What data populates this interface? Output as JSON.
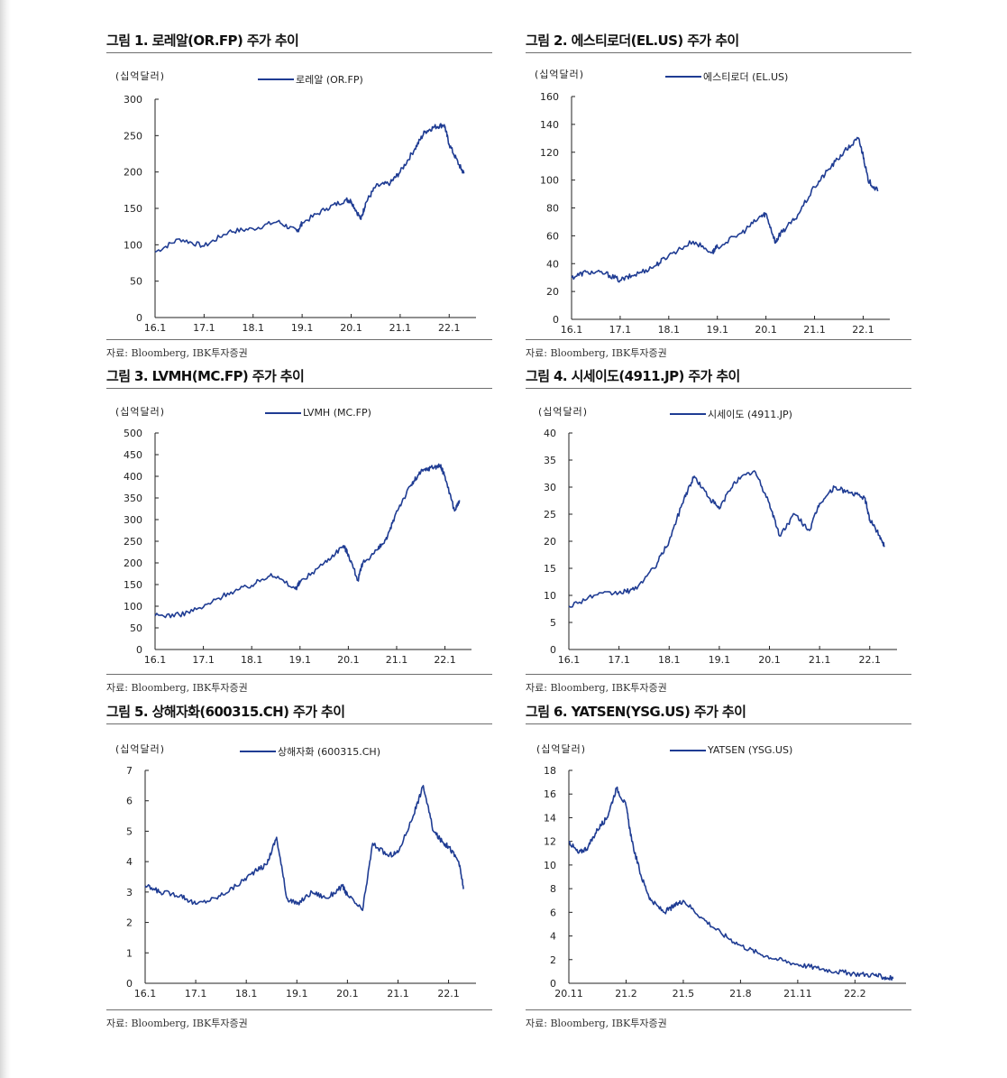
{
  "source": "자료: Bloomberg, IBK투자증권",
  "chart_data": [
    {
      "type": "line",
      "title": "그림 1. 로레알(OR.FP) 주가 추이",
      "unit": "(십억달러)",
      "series": [
        {
          "name": "로레알 (OR.FP)",
          "color": "#1f3c93"
        }
      ],
      "x": [
        2016.0,
        2016.5,
        2017.0,
        2017.5,
        2018.0,
        2018.5,
        2018.9,
        2019.0,
        2019.5,
        2019.9,
        2020.0,
        2020.2,
        2020.3,
        2020.5,
        2020.8,
        2021.0,
        2021.3,
        2021.5,
        2021.7,
        2021.9,
        2022.0,
        2022.2,
        2022.3
      ],
      "values": [
        90,
        108,
        98,
        118,
        122,
        132,
        118,
        130,
        150,
        162,
        160,
        135,
        158,
        180,
        185,
        200,
        232,
        255,
        262,
        265,
        238,
        210,
        198
      ],
      "xticks": [
        "16.1",
        "17.1",
        "18.1",
        "19.1",
        "20.1",
        "21.1",
        "22.1"
      ],
      "xtick_values": [
        2016.0,
        2017.0,
        2018.0,
        2019.0,
        2020.0,
        2021.0,
        2022.0
      ],
      "xlim": [
        2016.0,
        2022.4
      ],
      "yticks": [
        "0",
        "50",
        "100",
        "150",
        "200",
        "250",
        "300"
      ],
      "ylim": [
        0,
        300
      ]
    },
    {
      "type": "line",
      "title": "그림 2. 에스티로더(EL.US) 주가 추이",
      "unit": "(십억달러)",
      "series": [
        {
          "name": "에스티로더 (EL.US)",
          "color": "#1f3c93"
        }
      ],
      "x": [
        2016.0,
        2016.3,
        2016.7,
        2017.0,
        2017.3,
        2017.7,
        2018.0,
        2018.5,
        2018.9,
        2019.0,
        2019.5,
        2019.9,
        2020.0,
        2020.2,
        2020.3,
        2020.6,
        2021.0,
        2021.3,
        2021.6,
        2021.9,
        2022.0,
        2022.1,
        2022.3
      ],
      "values": [
        30,
        34,
        33,
        28,
        32,
        38,
        46,
        56,
        48,
        52,
        62,
        74,
        76,
        55,
        62,
        72,
        95,
        108,
        120,
        130,
        118,
        100,
        92
      ],
      "xticks": [
        "16.1",
        "17.1",
        "18.1",
        "19.1",
        "20.1",
        "21.1",
        "22.1"
      ],
      "xtick_values": [
        2016.0,
        2017.0,
        2018.0,
        2019.0,
        2020.0,
        2021.0,
        2022.0
      ],
      "xlim": [
        2016.0,
        2022.4
      ],
      "yticks": [
        "0",
        "20",
        "40",
        "60",
        "80",
        "100",
        "120",
        "140",
        "160"
      ],
      "ylim": [
        0,
        160
      ]
    },
    {
      "type": "line",
      "title": "그림 3. LVMH(MC.FP) 주가 추이",
      "unit": "(십억달러)",
      "series": [
        {
          "name": "LVMH (MC.FP)",
          "color": "#1f3c93"
        }
      ],
      "x": [
        2016.0,
        2016.5,
        2017.0,
        2017.5,
        2018.0,
        2018.4,
        2018.9,
        2019.0,
        2019.5,
        2019.9,
        2020.0,
        2020.2,
        2020.3,
        2020.6,
        2020.8,
        2021.0,
        2021.3,
        2021.5,
        2021.7,
        2021.9,
        2022.0,
        2022.2,
        2022.3
      ],
      "values": [
        78,
        80,
        98,
        130,
        148,
        175,
        140,
        155,
        200,
        240,
        220,
        160,
        200,
        230,
        255,
        320,
        380,
        410,
        420,
        425,
        400,
        320,
        345
      ],
      "xticks": [
        "16.1",
        "17.1",
        "18.1",
        "19.1",
        "20.1",
        "21.1",
        "22.1"
      ],
      "xtick_values": [
        2016.0,
        2017.0,
        2018.0,
        2019.0,
        2020.0,
        2021.0,
        2022.0
      ],
      "xlim": [
        2016.0,
        2022.4
      ],
      "yticks": [
        "0",
        "50",
        "100",
        "150",
        "200",
        "250",
        "300",
        "350",
        "400",
        "450",
        "500"
      ],
      "ylim": [
        0,
        500
      ]
    },
    {
      "type": "line",
      "title": "그림 4. 시세이도(4911.JP) 주가 추이",
      "unit": "(십억달러)",
      "series": [
        {
          "name": "시세이도 (4911.JP)",
          "color": "#1f3c93"
        }
      ],
      "x": [
        2016.0,
        2016.5,
        2017.0,
        2017.3,
        2017.7,
        2018.0,
        2018.3,
        2018.5,
        2018.8,
        2019.0,
        2019.3,
        2019.7,
        2020.0,
        2020.2,
        2020.5,
        2020.8,
        2021.0,
        2021.3,
        2021.6,
        2021.9,
        2022.0,
        2022.2,
        2022.3
      ],
      "values": [
        8,
        10,
        10.5,
        11,
        15,
        20,
        28,
        32,
        28,
        26,
        31,
        33,
        27,
        21,
        25,
        22,
        27,
        30,
        29,
        28,
        24,
        21,
        19
      ],
      "xticks": [
        "16.1",
        "17.1",
        "18.1",
        "19.1",
        "20.1",
        "21.1",
        "22.1"
      ],
      "xtick_values": [
        2016.0,
        2017.0,
        2018.0,
        2019.0,
        2020.0,
        2021.0,
        2022.0
      ],
      "xlim": [
        2016.0,
        2022.4
      ],
      "yticks": [
        "0",
        "5",
        "10",
        "15",
        "20",
        "25",
        "30",
        "35",
        "40"
      ],
      "ylim": [
        0,
        40
      ]
    },
    {
      "type": "line",
      "title": "그림 5. 상해자화(600315.CH) 주가 추이",
      "unit": "(십억달러)",
      "series": [
        {
          "name": "상해자화 (600315.CH)",
          "color": "#1f3c93"
        }
      ],
      "x": [
        2016.0,
        2016.3,
        2016.7,
        2017.0,
        2017.4,
        2017.8,
        2018.1,
        2018.4,
        2018.6,
        2018.8,
        2019.0,
        2019.3,
        2019.6,
        2019.9,
        2020.0,
        2020.3,
        2020.5,
        2020.8,
        2021.0,
        2021.3,
        2021.5,
        2021.7,
        2021.9,
        2022.0,
        2022.2,
        2022.3
      ],
      "values": [
        3.2,
        3.0,
        2.9,
        2.6,
        2.8,
        3.2,
        3.6,
        3.9,
        4.8,
        2.8,
        2.6,
        3.0,
        2.8,
        3.2,
        2.9,
        2.4,
        4.6,
        4.2,
        4.3,
        5.5,
        6.5,
        5.0,
        4.6,
        4.5,
        4.0,
        3.1
      ],
      "xticks": [
        "16.1",
        "17.1",
        "18.1",
        "19.1",
        "20.1",
        "21.1",
        "22.1"
      ],
      "xtick_values": [
        2016.0,
        2017.0,
        2018.0,
        2019.0,
        2020.0,
        2021.0,
        2022.0
      ],
      "xlim": [
        2016.0,
        2022.4
      ],
      "yticks": [
        "0",
        "1",
        "2",
        "3",
        "4",
        "5",
        "6",
        "7"
      ],
      "ylim": [
        0,
        7
      ]
    },
    {
      "type": "line",
      "title": "그림 6. YATSEN(YSG.US) 주가 추이",
      "unit": "(십억달러)",
      "series": [
        {
          "name": "YATSEN (YSG.US)",
          "color": "#1f3c93"
        }
      ],
      "x": [
        0,
        0.5,
        1,
        1.5,
        2,
        2.5,
        3,
        3.3,
        3.8,
        4.3,
        5,
        5.5,
        6,
        7,
        8,
        9,
        10,
        11,
        12,
        13,
        14,
        15,
        16,
        16.5,
        17
      ],
      "values": [
        12,
        11,
        11.5,
        13,
        14,
        16.5,
        15,
        12,
        9,
        7,
        6,
        6.5,
        7,
        5.5,
        4.2,
        3.2,
        2.5,
        2.0,
        1.6,
        1.3,
        1.0,
        0.8,
        0.7,
        0.5,
        0.4
      ],
      "xticks": [
        "20.11",
        "21.2",
        "21.5",
        "21.8",
        "21.11",
        "22.2"
      ],
      "xtick_values": [
        0,
        3,
        6,
        9,
        12,
        15
      ],
      "xlim": [
        0,
        17.3
      ],
      "yticks": [
        "0",
        "2",
        "4",
        "6",
        "8",
        "10",
        "12",
        "14",
        "16",
        "18"
      ],
      "ylim": [
        0,
        18
      ]
    }
  ]
}
